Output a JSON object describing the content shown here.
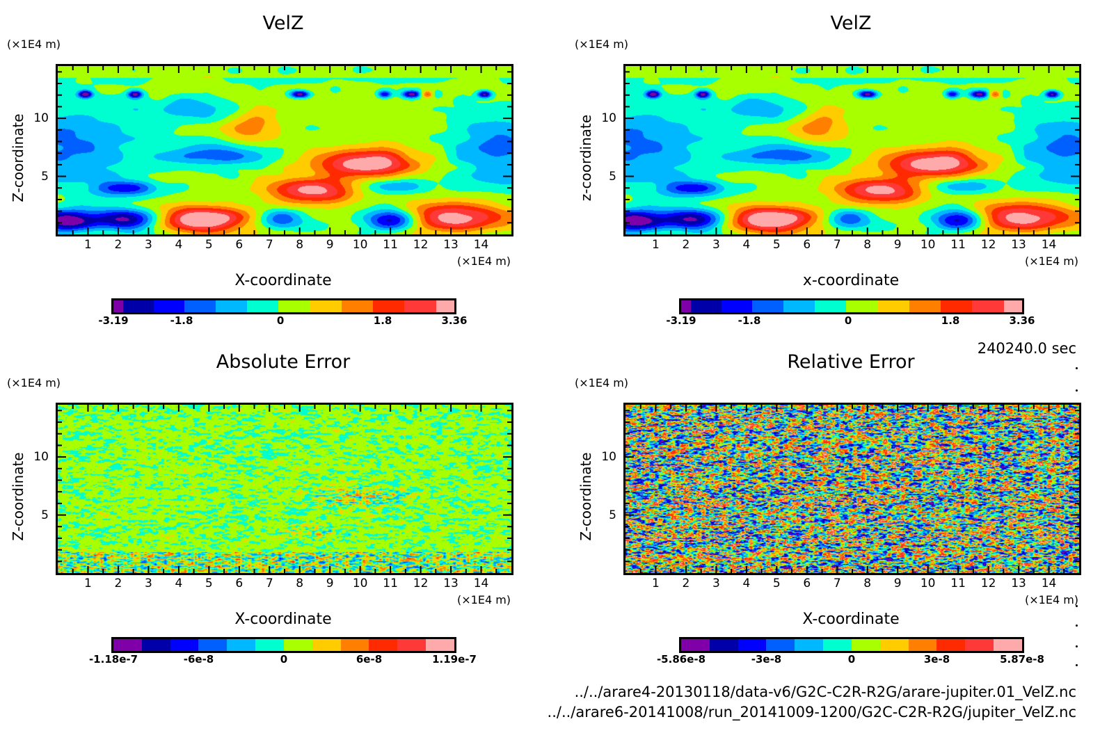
{
  "palette": [
    "#7f00a8",
    "#0000a8",
    "#0000ff",
    "#005fff",
    "#00b8ff",
    "#00ffd0",
    "#a8ff00",
    "#ffcc00",
    "#ff7f00",
    "#ff2a00",
    "#ff3838",
    "#ffaaaa"
  ],
  "panels": [
    {
      "id": "velz-a",
      "title": "VelZ",
      "y_unit": "(×1E4 m)",
      "x_unit": "(×1E4 m)",
      "ylabel": "Z-coordinate",
      "xlabel": "X-coordinate",
      "field": "flow",
      "colorbar": {
        "labels": [
          "-3.19",
          "-1.8",
          "0",
          "1.8",
          "3.36"
        ],
        "uneven": true
      }
    },
    {
      "id": "velz-b",
      "title": "VelZ",
      "y_unit": "(×1E4 m)",
      "x_unit": "(×1E4 m)",
      "ylabel": "z-coordinate",
      "xlabel": "x-coordinate",
      "field": "flow",
      "colorbar": {
        "labels": [
          "-3.19",
          "-1.8",
          "0",
          "1.8",
          "3.36"
        ],
        "uneven": true
      }
    },
    {
      "id": "abs-err",
      "title": "Absolute Error",
      "y_unit": "(×1E4 m)",
      "x_unit": "(×1E4 m)",
      "ylabel": "Z-coordinate",
      "xlabel": "X-coordinate",
      "field": "abserr",
      "colorbar": {
        "labels": [
          "-1.18e-7",
          "-6e-8",
          "0",
          "6e-8",
          "1.19e-7"
        ],
        "uneven": false
      }
    },
    {
      "id": "rel-err",
      "title": "Relative Error",
      "y_unit": "(×1E4 m)",
      "x_unit": "(×1E4 m)",
      "ylabel": "Z-coordinate",
      "xlabel": "X-coordinate",
      "field": "relerr",
      "colorbar": {
        "labels": [
          "-5.86e-8",
          "-3e-8",
          "0",
          "3e-8",
          "5.87e-8"
        ],
        "uneven": false
      }
    }
  ],
  "chart_data": [
    {
      "type": "heatmap",
      "title": "VelZ",
      "xlabel": "X-coordinate",
      "ylabel": "Z-coordinate",
      "x_unit": "×1E4 m",
      "y_unit": "×1E4 m",
      "xlim": [
        0,
        15
      ],
      "ylim": [
        0,
        14.5
      ],
      "x_ticks": [
        1,
        2,
        3,
        4,
        5,
        6,
        7,
        8,
        9,
        10,
        11,
        12,
        13,
        14
      ],
      "y_ticks": [
        5,
        10
      ],
      "colorbar_range": [
        -3.19,
        3.36
      ],
      "colorbar_ticks": [
        -3.19,
        -1.8,
        0,
        1.8,
        3.36
      ],
      "levels": 12
    },
    {
      "type": "heatmap",
      "title": "VelZ",
      "xlabel": "x-coordinate",
      "ylabel": "z-coordinate",
      "x_unit": "×1E4 m",
      "y_unit": "×1E4 m",
      "xlim": [
        0,
        15
      ],
      "ylim": [
        0,
        14.5
      ],
      "x_ticks": [
        1,
        2,
        3,
        4,
        5,
        6,
        7,
        8,
        9,
        10,
        11,
        12,
        13,
        14
      ],
      "y_ticks": [
        5,
        10
      ],
      "colorbar_range": [
        -3.19,
        3.36
      ],
      "colorbar_ticks": [
        -3.19,
        -1.8,
        0,
        1.8,
        3.36
      ],
      "levels": 12
    },
    {
      "type": "heatmap",
      "title": "Absolute Error",
      "xlabel": "X-coordinate",
      "ylabel": "Z-coordinate",
      "x_unit": "×1E4 m",
      "y_unit": "×1E4 m",
      "xlim": [
        0,
        15
      ],
      "ylim": [
        0,
        14.5
      ],
      "x_ticks": [
        1,
        2,
        3,
        4,
        5,
        6,
        7,
        8,
        9,
        10,
        11,
        12,
        13,
        14
      ],
      "y_ticks": [
        5,
        10
      ],
      "colorbar_range": [
        -1.18e-07,
        1.19e-07
      ],
      "colorbar_ticks": [
        -1.18e-07,
        -6e-08,
        0,
        6e-08,
        1.19e-07
      ],
      "levels": 12
    },
    {
      "type": "heatmap",
      "title": "Relative Error",
      "xlabel": "X-coordinate",
      "ylabel": "Z-coordinate",
      "x_unit": "×1E4 m",
      "y_unit": "×1E4 m",
      "xlim": [
        0,
        15
      ],
      "ylim": [
        0,
        14.5
      ],
      "x_ticks": [
        1,
        2,
        3,
        4,
        5,
        6,
        7,
        8,
        9,
        10,
        11,
        12,
        13,
        14
      ],
      "y_ticks": [
        5,
        10
      ],
      "colorbar_range": [
        -5.86e-08,
        5.87e-08
      ],
      "colorbar_ticks": [
        -5.86e-08,
        -3e-08,
        0,
        3e-08,
        5.87e-08
      ],
      "levels": 12
    }
  ],
  "time_label": "240240.0 sec",
  "files": [
    "../../arare4-20130118/data-v6/G2C-C2R-R2G/arare-jupiter.01_VelZ.nc",
    "../../arare6-20141008/run_20141009-1200/G2C-C2R-R2G/jupiter_VelZ.nc"
  ]
}
